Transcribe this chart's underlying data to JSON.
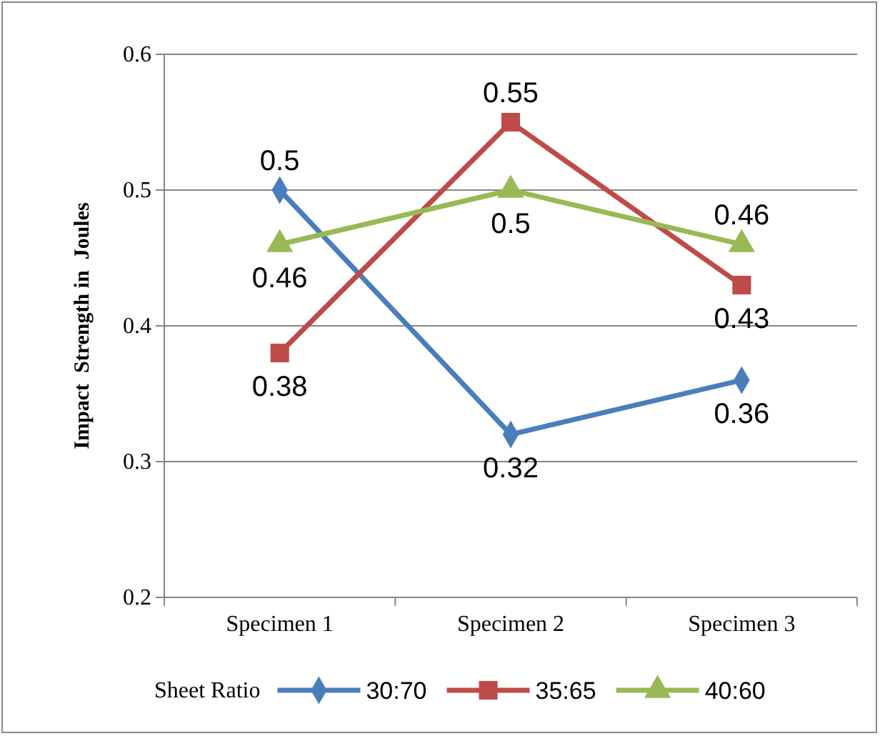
{
  "chart_data": {
    "type": "line",
    "ylabel": "Impact  Strength in  Joules",
    "legend_title": "Sheet Ratio",
    "categories": [
      "Specimen 1",
      "Specimen 2",
      "Specimen 3"
    ],
    "series": [
      {
        "name": "30:70",
        "color": "#4a7ebb",
        "marker": "diamond",
        "values": [
          0.5,
          0.32,
          0.36
        ]
      },
      {
        "name": "35:65",
        "color": "#be4b48",
        "marker": "square",
        "values": [
          0.38,
          0.55,
          0.43
        ]
      },
      {
        "name": "40:60",
        "color": "#98b954",
        "marker": "triangle",
        "values": [
          0.46,
          0.5,
          0.46
        ]
      }
    ],
    "ylim": [
      0.2,
      0.6
    ],
    "yticks": [
      0.2,
      0.3,
      0.4,
      0.5,
      0.6
    ],
    "grid": "y",
    "legend": "bottom",
    "data_labels": true,
    "line_style": "solid"
  }
}
